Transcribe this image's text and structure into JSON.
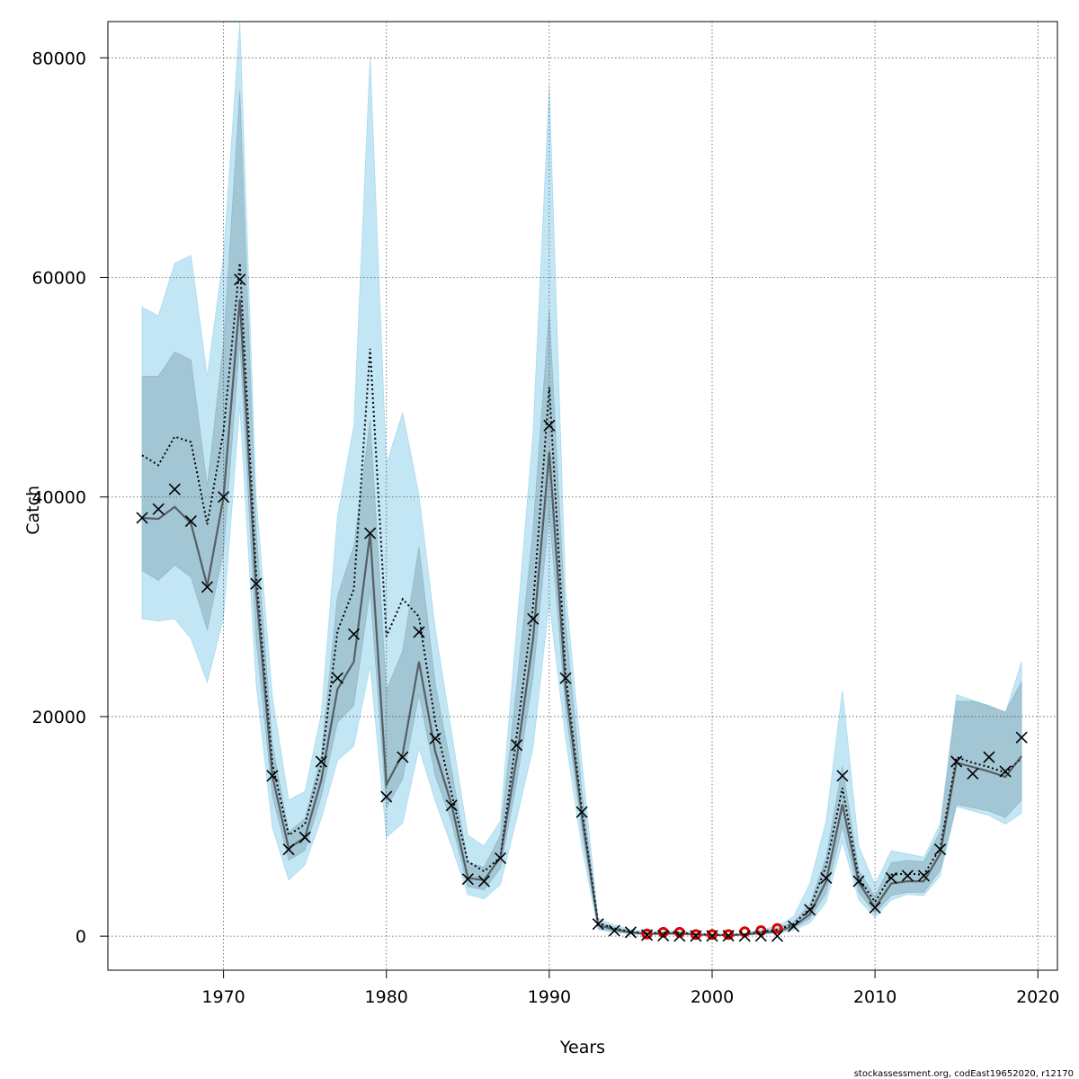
{
  "chart_data": {
    "type": "line",
    "title": "",
    "xlabel": "Years",
    "ylabel": "Catch",
    "xlim": [
      1962.9,
      2021.2
    ],
    "ylim": [
      -3100,
      83300
    ],
    "xticks": [
      1970,
      1980,
      1990,
      2000,
      2010,
      2020
    ],
    "yticks": [
      0,
      20000,
      40000,
      60000,
      80000
    ],
    "grid": true,
    "credit": "stockassessment.org, codEast19652020, r12170",
    "colors": {
      "blue_band": "#87ceeb",
      "grey_band": "#7f7f7f",
      "observed_marker": "#000000",
      "flagged_marker": "#e00000"
    },
    "years": [
      1965,
      1966,
      1967,
      1968,
      1969,
      1970,
      1971,
      1972,
      1973,
      1974,
      1975,
      1976,
      1977,
      1978,
      1979,
      1980,
      1981,
      1982,
      1983,
      1984,
      1985,
      1986,
      1987,
      1988,
      1989,
      1990,
      1991,
      1992,
      1993,
      1994,
      1995,
      1996,
      1997,
      1998,
      1999,
      2000,
      2001,
      2002,
      2003,
      2004,
      2005,
      2006,
      2007,
      2008,
      2009,
      2010,
      2011,
      2012,
      2013,
      2014,
      2015,
      2016,
      2017,
      2018,
      2019
    ],
    "series": [
      {
        "name": "",
        "style": "dotted",
        "values": [
          43800,
          42900,
          45500,
          45000,
          37500,
          46000,
          61300,
          33000,
          15700,
          9200,
          10200,
          15600,
          27800,
          31600,
          53500,
          27300,
          30700,
          29100,
          19500,
          13000,
          6800,
          5900,
          7200,
          18300,
          30000,
          50000,
          23900,
          11500,
          1200,
          700,
          400,
          250,
          320,
          320,
          180,
          130,
          110,
          170,
          400,
          600,
          1100,
          2500,
          6400,
          13500,
          5300,
          3100,
          5600,
          5700,
          5600,
          8000,
          16300,
          15800,
          15400,
          14900,
          16200
        ]
      },
      {
        "name": "",
        "style": "solid",
        "values": [
          38100,
          38000,
          39100,
          37600,
          31900,
          40000,
          58000,
          31500,
          14600,
          8000,
          9000,
          14200,
          22500,
          25000,
          36700,
          13800,
          16600,
          25000,
          16800,
          12000,
          5300,
          5100,
          7200,
          16200,
          27000,
          44100,
          22700,
          11000,
          1000,
          600,
          350,
          200,
          250,
          250,
          150,
          100,
          90,
          150,
          300,
          450,
          900,
          2000,
          5000,
          12000,
          4900,
          2600,
          4800,
          5000,
          5000,
          7500,
          15800,
          15400,
          15000,
          14500,
          16400
        ]
      },
      {
        "name": "",
        "style": "band",
        "lower": [
          33300,
          32400,
          33800,
          32700,
          27900,
          35000,
          54000,
          27000,
          12800,
          6900,
          7800,
          12700,
          19500,
          21000,
          31500,
          11700,
          14300,
          22000,
          14600,
          10400,
          4500,
          4200,
          6200,
          14000,
          23500,
          38500,
          20700,
          9600,
          700,
          400,
          250,
          150,
          180,
          180,
          100,
          70,
          60,
          100,
          220,
          330,
          700,
          1600,
          3900,
          10000,
          4000,
          2100,
          3700,
          4000,
          4000,
          6000,
          12000,
          11700,
          11400,
          10800,
          12400
        ],
        "upper": [
          51000,
          51000,
          53200,
          52500,
          41000,
          54000,
          77000,
          37000,
          17500,
          9500,
          10700,
          16500,
          31000,
          35500,
          47000,
          22400,
          26000,
          35500,
          23000,
          15200,
          6700,
          6300,
          9200,
          22800,
          37000,
          57000,
          28500,
          13200,
          1300,
          800,
          450,
          300,
          350,
          350,
          220,
          160,
          140,
          220,
          480,
          700,
          1300,
          2900,
          7200,
          15500,
          6000,
          3600,
          6700,
          6900,
          6800,
          9500,
          21400,
          21400,
          21000,
          20400,
          23200
        ]
      },
      {
        "name": "",
        "style": "band",
        "lower": [
          28900,
          28700,
          28900,
          27100,
          23100,
          29000,
          48300,
          23000,
          9900,
          5100,
          6500,
          10700,
          16000,
          17300,
          24600,
          9000,
          10300,
          17100,
          12300,
          8200,
          3800,
          3400,
          4700,
          10700,
          17100,
          30400,
          18000,
          8100,
          600,
          350,
          200,
          100,
          150,
          150,
          80,
          50,
          40,
          80,
          180,
          280,
          550,
          1200,
          3100,
          8600,
          3300,
          1700,
          3300,
          3800,
          3700,
          5500,
          11800,
          11400,
          11000,
          10200,
          11200
        ],
        "upper": [
          57300,
          56500,
          61300,
          62000,
          51000,
          62000,
          83300,
          40000,
          21800,
          12400,
          13200,
          20200,
          38300,
          46500,
          80100,
          43000,
          47700,
          40200,
          28000,
          18600,
          9200,
          8200,
          10500,
          28100,
          45800,
          77500,
          31600,
          15900,
          1600,
          1000,
          600,
          400,
          450,
          450,
          280,
          200,
          170,
          280,
          600,
          900,
          1800,
          4800,
          10500,
          22400,
          8200,
          4700,
          7800,
          7500,
          7200,
          10200,
          22000,
          21500,
          21000,
          20300,
          25000
        ]
      }
    ],
    "observed": [
      38100,
      38900,
      40700,
      37800,
      31800,
      40000,
      59800,
      32100,
      14600,
      7900,
      9000,
      15900,
      23500,
      27500,
      36700,
      12700,
      16300,
      27700,
      18000,
      11900,
      5200,
      5000,
      7100,
      17400,
      28900,
      46500,
      23500,
      11300,
      1100,
      500,
      350,
      100,
      50,
      20,
      20,
      30,
      40,
      20,
      30,
      10,
      900,
      2400,
      5300,
      14600,
      5000,
      2600,
      5300,
      5500,
      5500,
      7900,
      15900,
      14800,
      16300,
      15000,
      18100
    ],
    "flagged_years": [
      1996,
      1997,
      1998,
      1999,
      2000,
      2001,
      2002,
      2003,
      2004
    ],
    "flagged_values": [
      200,
      350,
      350,
      150,
      150,
      150,
      400,
      500,
      700
    ]
  }
}
